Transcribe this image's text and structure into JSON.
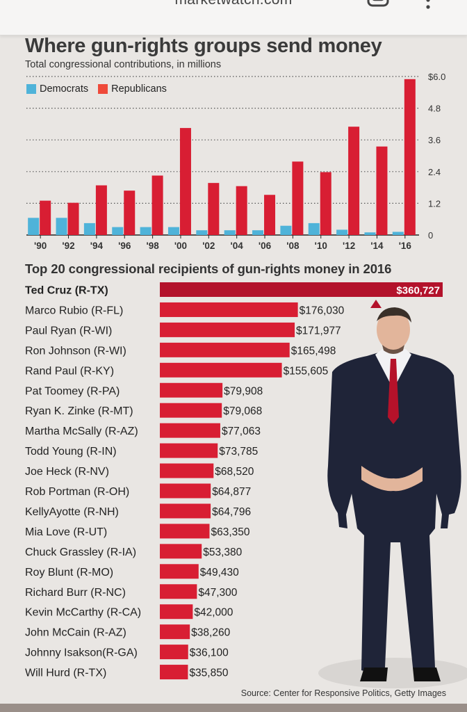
{
  "browser": {
    "url": "marketwatch.com",
    "icons": [
      "tabs-icon",
      "more-vert-icon"
    ]
  },
  "headline": "Where gun-rights groups send money",
  "subhead": "Total congressional contributions, in millions",
  "colors": {
    "democrats": "#4fb3d9",
    "republicans": "#d81e33",
    "top_bar": "#b3122b"
  },
  "chart_data": [
    {
      "type": "bar",
      "title": "Where gun-rights groups send money",
      "subtitle": "Total congressional contributions, in millions",
      "categories": [
        "'90",
        "'92",
        "'94",
        "'96",
        "'98",
        "'00",
        "'02",
        "'04",
        "'06",
        "'08",
        "'10",
        "'12",
        "'14",
        "'16"
      ],
      "series": [
        {
          "name": "Democrats",
          "values": [
            0.65,
            0.65,
            0.45,
            0.3,
            0.3,
            0.3,
            0.18,
            0.18,
            0.18,
            0.35,
            0.45,
            0.2,
            0.1,
            0.12
          ]
        },
        {
          "name": "Republicans",
          "values": [
            1.3,
            1.22,
            1.88,
            1.68,
            2.25,
            4.05,
            1.97,
            1.85,
            1.52,
            2.78,
            2.38,
            4.1,
            3.35,
            5.9
          ]
        }
      ],
      "yticks": [
        "$6.0",
        "4.8",
        "3.6",
        "2.4",
        "1.2",
        "0"
      ],
      "ylim": [
        0,
        6.0
      ],
      "xlabel": "",
      "ylabel": "",
      "legend": "top-left",
      "grid": true
    },
    {
      "type": "bar",
      "orientation": "horizontal",
      "title": "Top 20 congressional recipients of gun-rights money in 2016",
      "categories": [
        "Ted Cruz (R-TX)",
        "Marco Rubio (R-FL)",
        "Paul Ryan (R-WI)",
        "Ron Johnson (R-WI)",
        "Rand Paul (R-KY)",
        "Pat Toomey (R-PA)",
        "Ryan K. Zinke (R-MT)",
        "Martha McSally (R-AZ)",
        "Todd Young (R-IN)",
        "Joe Heck (R-NV)",
        "Rob Portman (R-OH)",
        "KellyAyotte (R-NH)",
        "Mia Love (R-UT)",
        "Chuck Grassley (R-IA)",
        "Roy Blunt (R-MO)",
        "Richard Burr (R-NC)",
        "Kevin McCarthy (R-CA)",
        "John McCain (R-AZ)",
        "Johnny  Isakson(R-GA)",
        "Will Hurd (R-TX)"
      ],
      "values": [
        360727,
        176030,
        171977,
        165498,
        155605,
        79908,
        79068,
        77063,
        73785,
        68520,
        64877,
        64796,
        63350,
        53380,
        49430,
        47300,
        42000,
        38260,
        36100,
        35850
      ],
      "value_labels": [
        "$360,727",
        "$176,030",
        "$171,977",
        "$165,498",
        "$155,605",
        "$79,908",
        "$79,068",
        "$77,063",
        "$73,785",
        "$68,520",
        "$64,877",
        "$64,796",
        "$63,350",
        "$53,380",
        "$49,430",
        "$47,300",
        "$42,000",
        "$38,260",
        "$36,100",
        "$35,850"
      ]
    }
  ],
  "source": "Source: Center for Responsive Politics, Getty Images"
}
